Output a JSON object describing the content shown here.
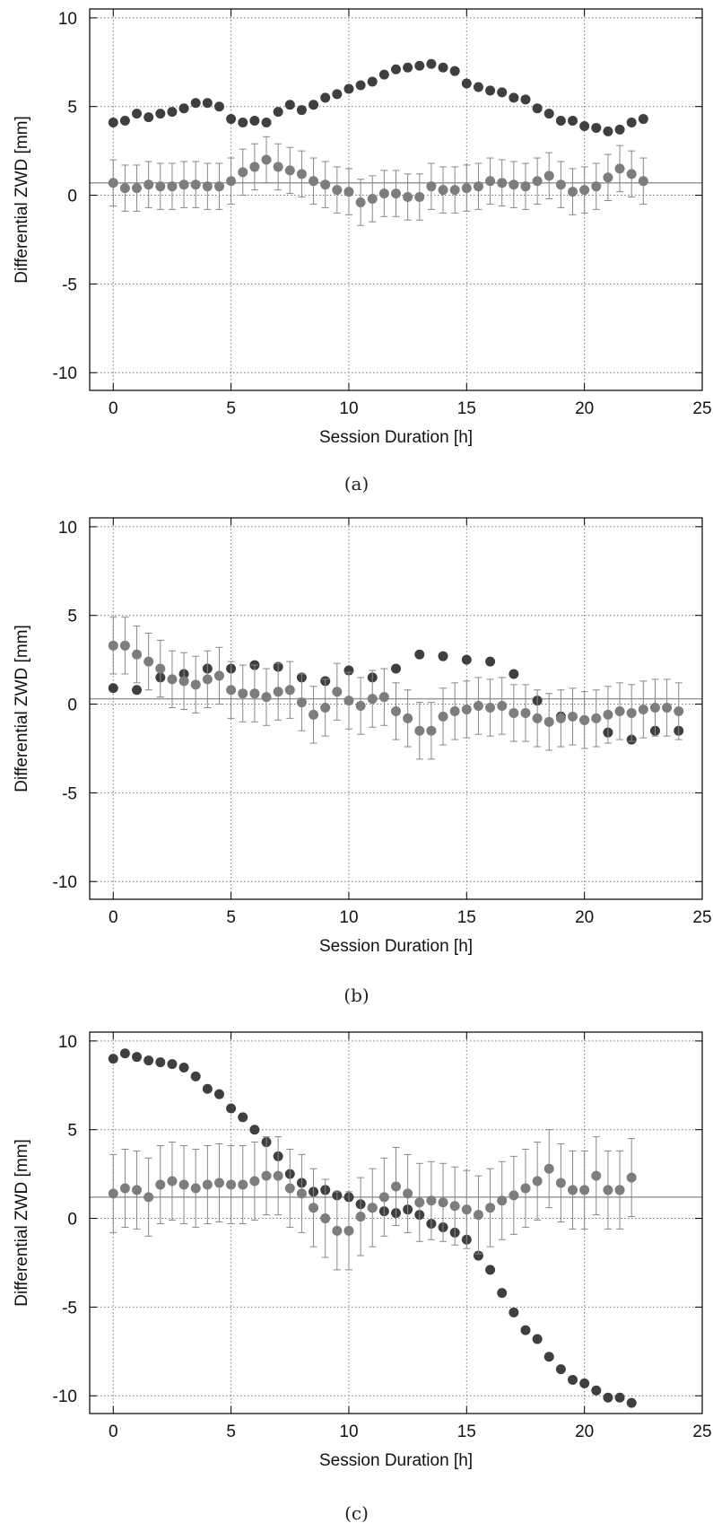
{
  "chart_data": [
    {
      "type": "scatter",
      "caption": "(a)",
      "xlabel": "Session Duration [h]",
      "ylabel": "Differential ZWD [mm]",
      "xlim": [
        -1,
        25
      ],
      "ylim": [
        -11,
        10.5
      ],
      "xticks": [
        "0",
        "5",
        "10",
        "15",
        "20",
        "25"
      ],
      "yticks": [
        "10",
        "5",
        "0",
        "-5",
        "-10"
      ],
      "grid": true,
      "reference_line_y": 0.7,
      "series": [
        {
          "color": "#3f3f3f",
          "x": [
            0,
            0.5,
            1,
            1.5,
            2,
            2.5,
            3,
            3.5,
            4,
            4.5,
            5,
            5.5,
            6,
            6.5,
            7,
            7.5,
            8,
            8.5,
            9,
            9.5,
            10,
            10.5,
            11,
            11.5,
            12,
            12.5,
            13,
            13.5,
            14,
            14.5,
            15,
            15.5,
            16,
            16.5,
            17,
            17.5,
            18,
            18.5,
            19,
            19.5,
            20,
            20.5,
            21,
            21.5,
            22,
            22.5
          ],
          "y": [
            4.1,
            4.2,
            4.6,
            4.4,
            4.6,
            4.7,
            4.9,
            5.2,
            5.2,
            5.0,
            4.3,
            4.1,
            4.2,
            4.1,
            4.7,
            5.1,
            4.8,
            5.1,
            5.5,
            5.7,
            6.0,
            6.2,
            6.4,
            6.8,
            7.1,
            7.2,
            7.3,
            7.4,
            7.2,
            7.0,
            6.3,
            6.1,
            5.9,
            5.8,
            5.5,
            5.4,
            4.9,
            4.6,
            4.2,
            4.2,
            3.9,
            3.8,
            3.6,
            3.7,
            4.1,
            4.3
          ]
        },
        {
          "color": "#7d7d7d",
          "x": [
            0,
            0.5,
            1,
            1.5,
            2,
            2.5,
            3,
            3.5,
            4,
            4.5,
            5,
            5.5,
            6,
            6.5,
            7,
            7.5,
            8,
            8.5,
            9,
            9.5,
            10,
            10.5,
            11,
            11.5,
            12,
            12.5,
            13,
            13.5,
            14,
            14.5,
            15,
            15.5,
            16,
            16.5,
            17,
            17.5,
            18,
            18.5,
            19,
            19.5,
            20,
            20.5,
            21,
            21.5,
            22,
            22.5
          ],
          "y": [
            0.7,
            0.4,
            0.4,
            0.6,
            0.5,
            0.5,
            0.6,
            0.6,
            0.5,
            0.5,
            0.8,
            1.3,
            1.6,
            2.0,
            1.6,
            1.4,
            1.2,
            0.8,
            0.6,
            0.3,
            0.2,
            -0.4,
            -0.2,
            0.1,
            0.1,
            -0.1,
            -0.1,
            0.5,
            0.3,
            0.3,
            0.4,
            0.5,
            0.8,
            0.7,
            0.6,
            0.5,
            0.8,
            1.1,
            0.6,
            0.2,
            0.3,
            0.5,
            1.0,
            1.5,
            1.2,
            0.8
          ],
          "err": 1.3
        }
      ]
    },
    {
      "type": "scatter",
      "caption": "(b)",
      "xlabel": "Session Duration [h]",
      "ylabel": "Differential ZWD [mm]",
      "xlim": [
        -1,
        25
      ],
      "ylim": [
        -11,
        10.5
      ],
      "xticks": [
        "0",
        "5",
        "10",
        "15",
        "20",
        "25"
      ],
      "yticks": [
        "10",
        "5",
        "0",
        "-5",
        "-10"
      ],
      "grid": true,
      "reference_line_y": 0.3,
      "series": [
        {
          "color": "#3f3f3f",
          "x": [
            0,
            1,
            2,
            3,
            4,
            5,
            6,
            7,
            8,
            9,
            10,
            11,
            12,
            13,
            14,
            15,
            16,
            17,
            18,
            19,
            20,
            21,
            22,
            23,
            24
          ],
          "y": [
            0.9,
            0.8,
            1.5,
            1.7,
            2.0,
            2.0,
            2.2,
            2.1,
            1.5,
            1.3,
            1.9,
            1.5,
            2.0,
            2.8,
            2.7,
            2.5,
            2.4,
            1.7,
            0.2,
            -0.7,
            -0.9,
            -1.6,
            -2.0,
            -1.5,
            -1.5
          ]
        },
        {
          "color": "#7d7d7d",
          "x": [
            0,
            0.5,
            1,
            1.5,
            2,
            2.5,
            3,
            3.5,
            4,
            4.5,
            5,
            5.5,
            6,
            6.5,
            7,
            7.5,
            8,
            8.5,
            9,
            9.5,
            10,
            10.5,
            11,
            11.5,
            12,
            12.5,
            13,
            13.5,
            14,
            14.5,
            15,
            15.5,
            16,
            16.5,
            17,
            17.5,
            18,
            18.5,
            19,
            19.5,
            20,
            20.5,
            21,
            21.5,
            22,
            22.5,
            23,
            23.5,
            24
          ],
          "y": [
            3.3,
            3.3,
            2.8,
            2.4,
            2.0,
            1.4,
            1.3,
            1.1,
            1.4,
            1.6,
            0.8,
            0.6,
            0.6,
            0.4,
            0.7,
            0.8,
            0.1,
            -0.6,
            -0.2,
            0.7,
            0.2,
            -0.1,
            0.3,
            0.4,
            -0.4,
            -0.8,
            -1.5,
            -1.5,
            -0.7,
            -0.4,
            -0.3,
            -0.1,
            -0.2,
            -0.1,
            -0.5,
            -0.5,
            -0.8,
            -1.0,
            -0.8,
            -0.7,
            -0.9,
            -0.8,
            -0.6,
            -0.4,
            -0.5,
            -0.3,
            -0.2,
            -0.2,
            -0.4
          ],
          "err": 1.6
        }
      ]
    },
    {
      "type": "scatter",
      "caption": "(c)",
      "xlabel": "Session Duration [h]",
      "ylabel": "Differential ZWD [mm]",
      "xlim": [
        -1,
        25
      ],
      "ylim": [
        -11,
        10.5
      ],
      "xticks": [
        "0",
        "5",
        "10",
        "15",
        "20",
        "25"
      ],
      "yticks": [
        "10",
        "5",
        "0",
        "-5",
        "-10"
      ],
      "grid": true,
      "reference_line_y": 1.2,
      "series": [
        {
          "color": "#3f3f3f",
          "x": [
            0,
            0.5,
            1,
            1.5,
            2,
            2.5,
            3,
            3.5,
            4,
            4.5,
            5,
            5.5,
            6,
            6.5,
            7,
            7.5,
            8,
            8.5,
            9,
            9.5,
            10,
            10.5,
            11,
            11.5,
            12,
            12.5,
            13,
            13.5,
            14,
            14.5,
            15,
            15.5,
            16,
            16.5,
            17,
            17.5,
            18,
            18.5,
            19,
            19.5,
            20,
            20.5,
            21,
            21.5,
            22
          ],
          "y": [
            9.0,
            9.3,
            9.1,
            8.9,
            8.8,
            8.7,
            8.5,
            8.0,
            7.3,
            7.0,
            6.2,
            5.7,
            5.0,
            4.3,
            3.5,
            2.5,
            2.0,
            1.5,
            1.6,
            1.3,
            1.2,
            0.8,
            0.6,
            0.4,
            0.3,
            0.5,
            0.2,
            -0.3,
            -0.5,
            -0.8,
            -1.2,
            -2.1,
            -2.9,
            -4.2,
            -5.3,
            -6.3,
            -6.8,
            -7.8,
            -8.5,
            -9.1,
            -9.3,
            -9.7,
            -10.1,
            -10.1,
            -10.4
          ]
        },
        {
          "color": "#7d7d7d",
          "x": [
            0,
            0.5,
            1,
            1.5,
            2,
            2.5,
            3,
            3.5,
            4,
            4.5,
            5,
            5.5,
            6,
            6.5,
            7,
            7.5,
            8,
            8.5,
            9,
            9.5,
            10,
            10.5,
            11,
            11.5,
            12,
            12.5,
            13,
            13.5,
            14,
            14.5,
            15,
            15.5,
            16,
            16.5,
            17,
            17.5,
            18,
            18.5,
            19,
            19.5,
            20,
            20.5,
            21,
            21.5,
            22
          ],
          "y": [
            1.4,
            1.7,
            1.6,
            1.2,
            1.9,
            2.1,
            1.9,
            1.7,
            1.9,
            2.0,
            1.9,
            1.9,
            2.1,
            2.4,
            2.4,
            1.7,
            1.4,
            0.6,
            0.0,
            -0.7,
            -0.7,
            0.1,
            0.6,
            1.2,
            1.8,
            1.4,
            0.9,
            1.0,
            0.9,
            0.7,
            0.5,
            0.2,
            0.6,
            1.0,
            1.3,
            1.7,
            2.1,
            2.8,
            2.0,
            1.6,
            1.6,
            2.4,
            1.6,
            1.6,
            2.3
          ],
          "err": 2.2
        }
      ]
    }
  ]
}
